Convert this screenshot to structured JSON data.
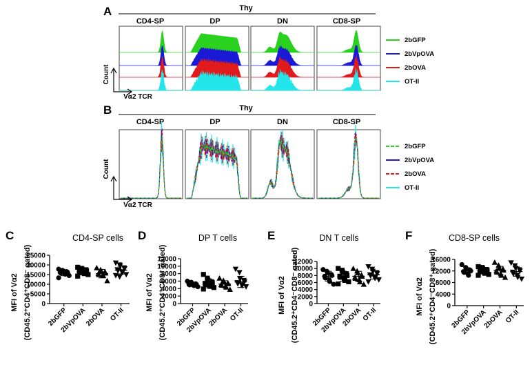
{
  "colors": {
    "green": "#2ad11f",
    "blue": "#1a1ad6",
    "red": "#e11b1b",
    "cyan": "#22e6ea"
  },
  "panel_a": {
    "letter": "A",
    "group": "Thy",
    "columns": [
      "CD4-SP",
      "DP",
      "DN",
      "CD8-SP"
    ],
    "y_axis": "Count",
    "x_axis": "Vα2 TCR",
    "legend": [
      "2bGFP",
      "2bVpOVA",
      "2bOVA",
      "OT-II"
    ]
  },
  "panel_b": {
    "letter": "B",
    "group": "Thy",
    "columns": [
      "CD4-SP",
      "DP",
      "DN",
      "CD8-SP"
    ],
    "y_axis": "Count",
    "x_axis": "Vα2 TCR",
    "legend": [
      "2bGFP",
      "2bVpOVA",
      "2bOVA",
      "OT-II"
    ]
  },
  "chart_data": [
    {
      "type": "scatter",
      "letter": "C",
      "title": "CD4-SP cells",
      "ylabel": "MFI of Vα2",
      "ylabel2": "(CD45.2⁺CD4⁺CD8⁻ gated)",
      "categories": [
        "2bGFP",
        "2bVpOVA",
        "2bOVA",
        "OT-II"
      ],
      "ylim": [
        0,
        25000
      ],
      "yticks": [
        0,
        5000,
        10000,
        15000,
        20000,
        25000
      ],
      "ytick_labels": [
        "0",
        "5000",
        "10000",
        "15000",
        "20000",
        "25000"
      ],
      "markers": [
        "circle",
        "square",
        "triangle",
        "triangle-down"
      ],
      "series": [
        {
          "name": "2bGFP",
          "mean": 16000,
          "sd": 1600,
          "values": [
            17800,
            17200,
            16800,
            16500,
            16200,
            16000,
            15800,
            15500,
            15200,
            14500,
            13300
          ]
        },
        {
          "name": "2bVpOVA",
          "mean": 16500,
          "sd": 1600,
          "values": [
            18800,
            18200,
            17800,
            17500,
            17000,
            16500,
            16300,
            16000,
            15500,
            15000,
            14200
          ]
        },
        {
          "name": "2bOVA",
          "mean": 15500,
          "sd": 2200,
          "values": [
            18500,
            17500,
            17000,
            16500,
            15800,
            15500,
            15000,
            14800,
            14500,
            11800
          ]
        },
        {
          "name": "OT-II",
          "mean": 17300,
          "sd": 2000,
          "values": [
            21000,
            20000,
            19500,
            18500,
            18000,
            17500,
            17000,
            16500,
            16000,
            15000,
            14500,
            13800
          ]
        }
      ]
    },
    {
      "type": "scatter",
      "letter": "D",
      "title": "DP T cells",
      "ylabel": "MFI of Vα2",
      "ylabel2": "(CD45.2⁺CD4⁺CD8⁺ gated)",
      "categories": [
        "2bGFP",
        "2bVpOVA",
        "2bOVA",
        "OT-II"
      ],
      "ylim": [
        0,
        12000
      ],
      "yticks": [
        0,
        2000,
        4000,
        6000,
        8000,
        10000,
        12000
      ],
      "ytick_labels": [
        "0",
        "2000",
        "4000",
        "6000",
        "8000",
        "10000",
        "12000"
      ],
      "markers": [
        "circle",
        "square",
        "triangle",
        "triangle-down"
      ],
      "series": [
        {
          "name": "2bGFP",
          "mean": 5200,
          "sd": 500,
          "values": [
            6000,
            5700,
            5500,
            5300,
            5200,
            5100,
            5000,
            4900,
            4800,
            4500
          ]
        },
        {
          "name": "2bVpOVA",
          "mean": 5400,
          "sd": 1200,
          "values": [
            7800,
            6800,
            6300,
            5800,
            5600,
            5400,
            5100,
            4900,
            4600,
            4300,
            3900
          ]
        },
        {
          "name": "2bOVA",
          "mean": 5200,
          "sd": 900,
          "values": [
            6800,
            6200,
            5800,
            5500,
            5300,
            5100,
            4900,
            4700,
            4400,
            3800
          ]
        },
        {
          "name": "OT-II",
          "mean": 5800,
          "sd": 1500,
          "values": [
            9200,
            8300,
            6600,
            6200,
            5800,
            5600,
            5300,
            5000,
            4800,
            4500
          ]
        }
      ]
    },
    {
      "type": "scatter",
      "letter": "E",
      "title": "DN T cells",
      "ylabel": "MFI of Vα2",
      "ylabel2": "(CD45.2⁺CD4⁻CD8⁻ gated)",
      "categories": [
        "2bGFP",
        "2bVpOVA",
        "2bOVA",
        "OT-II"
      ],
      "ylim": [
        0,
        12000
      ],
      "yticks": [
        0,
        2000,
        4000,
        6000,
        8000,
        10000,
        12000
      ],
      "ytick_labels": [
        "0",
        "2000",
        "4000",
        "6000",
        "8000",
        "10000",
        "12000"
      ],
      "markers": [
        "circle",
        "square",
        "triangle",
        "triangle-down"
      ],
      "series": [
        {
          "name": "2bGFP",
          "mean": 7800,
          "sd": 1400,
          "values": [
            9700,
            9200,
            8800,
            8300,
            8000,
            7800,
            7300,
            6800,
            6300,
            5500
          ]
        },
        {
          "name": "2bVpOVA",
          "mean": 7800,
          "sd": 1400,
          "values": [
            10000,
            9500,
            9000,
            8500,
            8000,
            7800,
            7500,
            7000,
            6600,
            6200,
            5600
          ]
        },
        {
          "name": "2bOVA",
          "mean": 7800,
          "sd": 1400,
          "values": [
            10000,
            9300,
            8800,
            8200,
            7800,
            7500,
            7200,
            6800,
            6200,
            5500
          ]
        },
        {
          "name": "OT-II",
          "mean": 8200,
          "sd": 1200,
          "values": [
            10500,
            9800,
            9200,
            8800,
            8500,
            8200,
            7900,
            7600,
            7200,
            6800,
            6200
          ]
        }
      ]
    },
    {
      "type": "scatter",
      "letter": "F",
      "title": "CD8-SP cells",
      "ylabel": "MFI of Vα2",
      "ylabel2": "(CD45.2⁺CD4⁻CD8⁺ gated)",
      "categories": [
        "2bGFP",
        "2bVpOVA",
        "2bOVA",
        "OT-II"
      ],
      "ylim": [
        0,
        16000
      ],
      "yticks": [
        0,
        4000,
        8000,
        12000,
        16000
      ],
      "ytick_labels": [
        "0",
        "4000",
        "8000",
        "12000",
        "16000"
      ],
      "markers": [
        "circle",
        "square",
        "triangle",
        "triangle-down"
      ],
      "series": [
        {
          "name": "2bGFP",
          "mean": 12000,
          "sd": 1100,
          "values": [
            14200,
            13200,
            12800,
            12300,
            12000,
            11800,
            11500,
            11000,
            10500
          ]
        },
        {
          "name": "2bVpOVA",
          "mean": 12000,
          "sd": 1000,
          "values": [
            13500,
            13200,
            12800,
            12500,
            12200,
            12000,
            11800,
            11500,
            11200,
            10800,
            10500
          ]
        },
        {
          "name": "2bOVA",
          "mean": 12200,
          "sd": 1400,
          "values": [
            15000,
            14000,
            13200,
            12700,
            12300,
            12000,
            11600,
            11000,
            10500,
            9800
          ]
        },
        {
          "name": "OT-II",
          "mean": 11800,
          "sd": 1600,
          "values": [
            14800,
            13800,
            13000,
            12400,
            12000,
            11600,
            11000,
            10500,
            9800,
            9200
          ]
        }
      ]
    }
  ]
}
